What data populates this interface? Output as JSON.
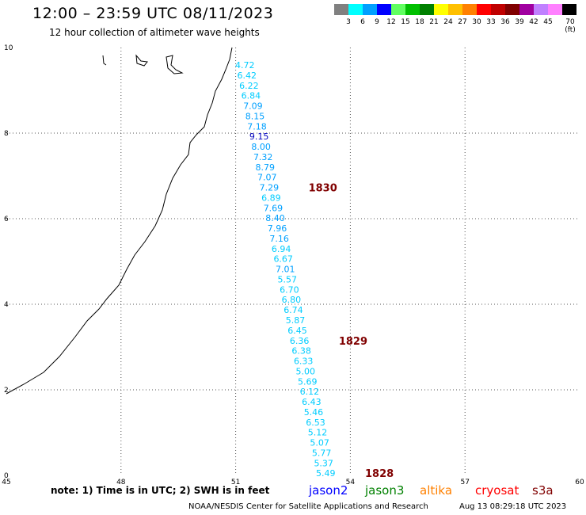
{
  "header": {
    "title": "12:00 – 23:59 UTC 08/11/2023",
    "subtitle": "12 hour collection of altimeter wave heights"
  },
  "scale": {
    "labels": [
      "3",
      "6",
      "9",
      "12",
      "15",
      "18",
      "21",
      "24",
      "27",
      "30",
      "33",
      "36",
      "39",
      "42",
      "45",
      "70 (ft)"
    ],
    "colors": [
      "#808080",
      "#00ffff",
      "#00a0ff",
      "#0000ff",
      "#60ff60",
      "#00c000",
      "#008000",
      "#ffff00",
      "#ffc000",
      "#ff8000",
      "#ff0000",
      "#c00000",
      "#800000",
      "#a000a0",
      "#c080ff",
      "#ff80ff",
      "#000000"
    ]
  },
  "map": {
    "x_ticks": [
      "45",
      "48",
      "51",
      "54",
      "57",
      "60"
    ],
    "y_ticks": [
      "0",
      "2",
      "4",
      "6",
      "8",
      "10"
    ],
    "xlim": [
      45,
      60
    ],
    "ylim": [
      0,
      10
    ]
  },
  "track": {
    "values": [
      "4.72",
      "6.42",
      "6.22",
      "6.84",
      "7.09",
      "8.15",
      "7.18",
      "9.15",
      "8.00",
      "7.32",
      "8.79",
      "7.07",
      "7.29",
      "6.89",
      "7.69",
      "8.40",
      "7.96",
      "7.16",
      "6.94",
      "6.67",
      "7.01",
      "5.57",
      "6.70",
      "6.80",
      "6.74",
      "5.87",
      "6.45",
      "6.36",
      "6.38",
      "6.33",
      "5.00",
      "5.69",
      "6.12",
      "6.43",
      "5.46",
      "6.53",
      "5.12",
      "5.07",
      "5.77",
      "5.37",
      "5.49"
    ],
    "times": [
      {
        "label": "1830",
        "index": 12
      },
      {
        "label": "1829",
        "index": 27
      },
      {
        "label": "1828",
        "index": 40
      }
    ],
    "time_color": "#800000"
  },
  "note": "note:  1) Time is in UTC;  2) SWH is in feet",
  "satellites": [
    {
      "name": "jason2",
      "color": "#0000ff"
    },
    {
      "name": "jason3",
      "color": "#008000"
    },
    {
      "name": "altika",
      "color": "#ff8000"
    },
    {
      "name": "cryosat",
      "color": "#ff0000"
    },
    {
      "name": "s3a",
      "color": "#800000"
    }
  ],
  "footer": {
    "credit": "NOAA/NESDIS Center for Satellite Applications and Research",
    "timestamp": "Aug 13 08:29:18 UTC 2023"
  }
}
